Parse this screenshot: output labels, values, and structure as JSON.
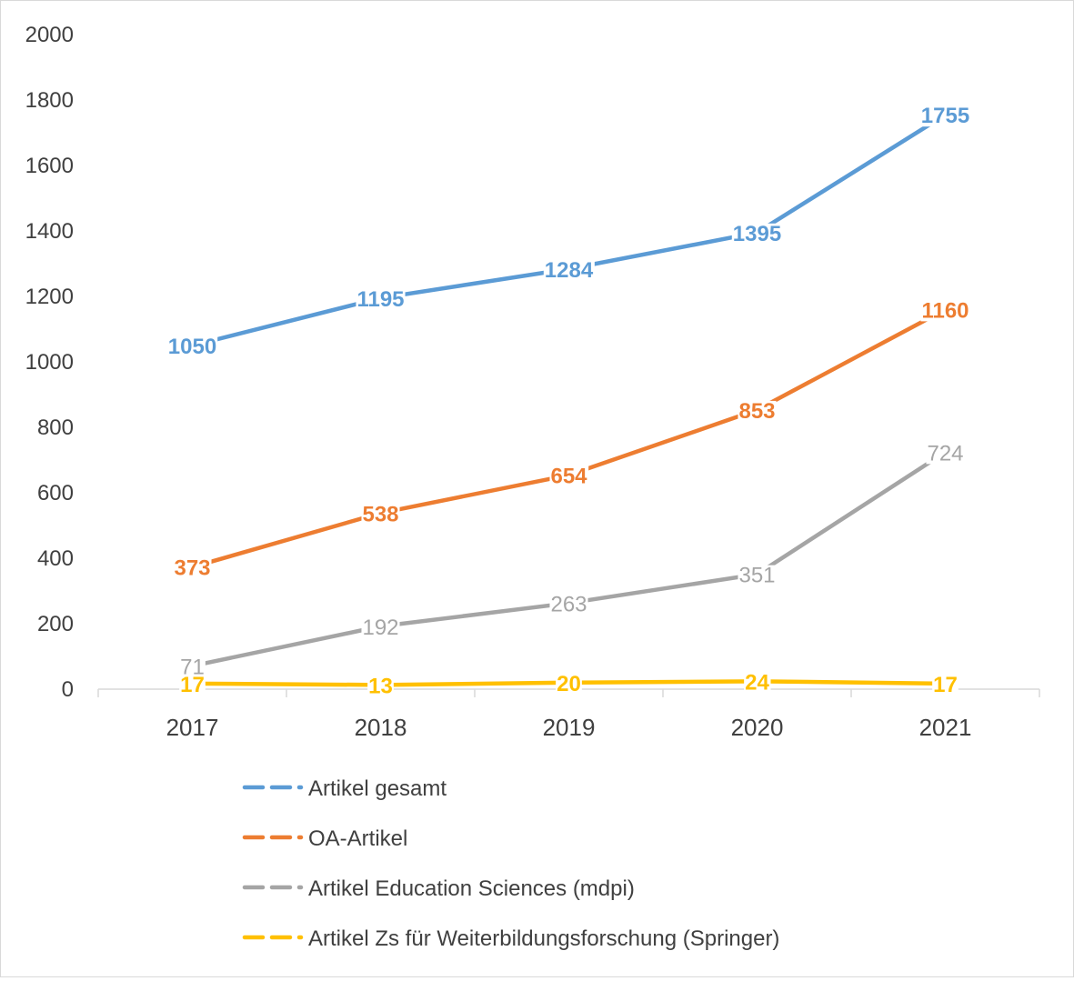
{
  "chart_data": {
    "type": "line",
    "categories": [
      "2017",
      "2018",
      "2019",
      "2020",
      "2021"
    ],
    "ylim": [
      0,
      2000
    ],
    "yticks": [
      0,
      200,
      400,
      600,
      800,
      1000,
      1200,
      1400,
      1600,
      1800,
      2000
    ],
    "grid": false,
    "legend_position": "bottom",
    "series": [
      {
        "name": "Artikel gesamt",
        "color": "#5b9bd5",
        "bold_labels": true,
        "values": [
          1050,
          1195,
          1284,
          1395,
          1755
        ]
      },
      {
        "name": "OA-Artikel",
        "color": "#ed7d31",
        "bold_labels": true,
        "values": [
          373,
          538,
          654,
          853,
          1160
        ]
      },
      {
        "name": "Artikel Education Sciences (mdpi)",
        "color": "#a5a5a5",
        "bold_labels": false,
        "values": [
          71,
          192,
          263,
          351,
          724
        ]
      },
      {
        "name": "Artikel Zs für Weiterbildungsforschung (Springer)",
        "color": "#ffc000",
        "bold_labels": true,
        "values": [
          17,
          13,
          20,
          24,
          17
        ]
      }
    ]
  }
}
